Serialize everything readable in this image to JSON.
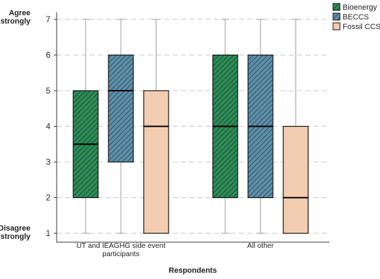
{
  "chart_data": {
    "type": "boxplot",
    "title": "",
    "xlabel": "Respondents",
    "ylabel": "",
    "ylim": [
      0.75,
      7.2
    ],
    "y_ticks": [
      1,
      2,
      3,
      4,
      5,
      6,
      7
    ],
    "y_end_labels": {
      "top": [
        "Agree",
        "strongly"
      ],
      "bottom": [
        "Disagree",
        "strongly"
      ]
    },
    "grid": "horizontal dashed at each tick",
    "legend_position": "top-right",
    "categories": [
      [
        "UT and IEAGHG side event",
        "participants"
      ],
      [
        "All other"
      ]
    ],
    "series": [
      {
        "name": "Bioenergy",
        "fill": "#2e8b57",
        "pattern": "diagonal-hatch",
        "boxes": [
          {
            "min": 1,
            "q1": 2,
            "median": 3.5,
            "q3": 5,
            "max": 7
          },
          {
            "min": 1,
            "q1": 2,
            "median": 4,
            "q3": 6,
            "max": 7
          }
        ]
      },
      {
        "name": "BECCS",
        "fill": "#5f8fa8",
        "pattern": "diagonal-hatch",
        "boxes": [
          {
            "min": 1,
            "q1": 3,
            "median": 5,
            "q3": 6,
            "max": 7
          },
          {
            "min": 1,
            "q1": 2,
            "median": 4,
            "q3": 6,
            "max": 7
          }
        ]
      },
      {
        "name": "Fossil CCS",
        "fill": "#f3cdb2",
        "pattern": "solid",
        "boxes": [
          {
            "min": 1,
            "q1": 1,
            "median": 4,
            "q3": 5,
            "max": 7
          },
          {
            "min": 1,
            "q1": 1,
            "median": 2,
            "q3": 4,
            "max": 7
          }
        ]
      }
    ]
  }
}
